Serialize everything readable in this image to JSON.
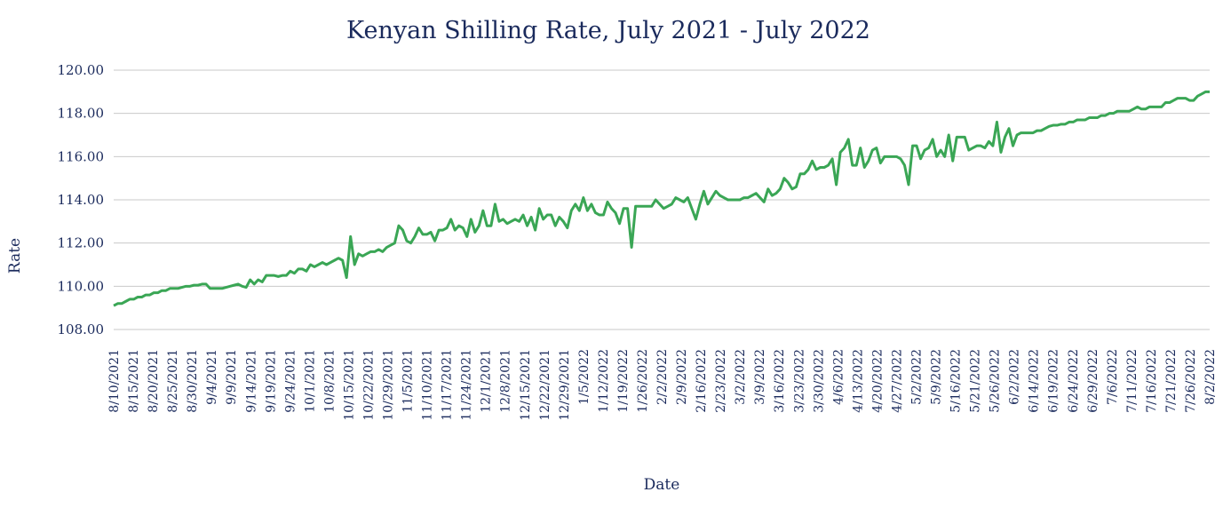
{
  "chart_data": {
    "type": "line",
    "title": "Kenyan Shilling Rate, July 2021 - July 2022",
    "xlabel": "Date",
    "ylabel": "Rate",
    "ylim": [
      108,
      120
    ],
    "yticks": [
      "108.00",
      "110.00",
      "112.00",
      "114.00",
      "116.00",
      "118.00",
      "120.00"
    ],
    "grid": "horizontal",
    "legend": "none",
    "colors": {
      "line": "#3aa655",
      "text": "#1a2a5c",
      "grid": "#c9c9c9"
    },
    "x_tick_labels": [
      "8/10/2021",
      "8/15/2021",
      "8/20/2021",
      "8/25/2021",
      "8/30/2021",
      "9/4/2021",
      "9/9/2021",
      "9/14/2021",
      "9/19/2021",
      "9/24/2021",
      "10/1/2021",
      "10/8/2021",
      "10/15/2021",
      "10/22/2021",
      "10/29/2021",
      "11/5/2021",
      "11/10/2021",
      "11/17/2021",
      "11/24/2021",
      "12/1/2021",
      "12/8/2021",
      "12/15/2021",
      "12/22/2021",
      "12/29/2021",
      "1/5/2022",
      "1/12/2022",
      "1/19/2022",
      "1/26/2022",
      "2/2/2022",
      "2/9/2022",
      "2/16/2022",
      "2/23/2022",
      "3/2/2022",
      "3/9/2022",
      "3/16/2022",
      "3/23/2022",
      "3/30/2022",
      "4/6/2022",
      "4/13/2022",
      "4/20/2022",
      "4/27/2022",
      "5/2/2022",
      "5/9/2022",
      "5/16/2022",
      "5/21/2022",
      "5/26/2022",
      "6/2/2022",
      "6/14/2022",
      "6/19/2022",
      "6/24/2022",
      "6/29/2022",
      "7/6/2022",
      "7/11/2022",
      "7/16/2022",
      "7/21/2022",
      "7/26/2022",
      "8/2/2022"
    ],
    "series": [
      {
        "values": [
          109.1,
          109.2,
          109.2,
          109.3,
          109.4,
          109.4,
          109.5,
          109.5,
          109.6,
          109.6,
          109.7,
          109.7,
          109.8,
          109.8,
          109.9,
          109.9,
          109.9,
          109.95,
          110.0,
          110.0,
          110.05,
          110.05,
          110.1,
          110.1,
          109.9,
          109.9,
          109.9,
          109.9,
          109.95,
          110.0,
          110.05,
          110.1,
          110.0,
          109.95,
          110.3,
          110.1,
          110.3,
          110.2,
          110.5,
          110.5,
          110.5,
          110.45,
          110.5,
          110.5,
          110.7,
          110.6,
          110.8,
          110.8,
          110.7,
          111.0,
          110.9,
          111.0,
          111.1,
          111.0,
          111.1,
          111.2,
          111.3,
          111.2,
          110.4,
          112.3,
          111.0,
          111.5,
          111.4,
          111.5,
          111.6,
          111.6,
          111.7,
          111.6,
          111.8,
          111.9,
          112.0,
          112.8,
          112.6,
          112.1,
          112.0,
          112.3,
          112.7,
          112.4,
          112.4,
          112.5,
          112.1,
          112.6,
          112.6,
          112.7,
          113.1,
          112.6,
          112.8,
          112.7,
          112.3,
          113.1,
          112.5,
          112.8,
          113.5,
          112.8,
          112.8,
          113.8,
          113.0,
          113.1,
          112.9,
          113.0,
          113.1,
          113.0,
          113.3,
          112.8,
          113.2,
          112.6,
          113.6,
          113.1,
          113.3,
          113.3,
          112.8,
          113.2,
          113.0,
          112.7,
          113.5,
          113.8,
          113.5,
          114.1,
          113.5,
          113.8,
          113.4,
          113.3,
          113.3,
          113.9,
          113.6,
          113.4,
          112.9,
          113.6,
          113.6,
          111.8,
          113.7,
          113.7,
          113.7,
          113.7,
          113.7,
          114.0,
          113.8,
          113.6,
          113.7,
          113.8,
          114.1,
          114.0,
          113.9,
          114.1,
          113.6,
          113.1,
          113.8,
          114.4,
          113.8,
          114.1,
          114.4,
          114.2,
          114.1,
          114.0,
          114.0,
          114.0,
          114.0,
          114.1,
          114.1,
          114.2,
          114.3,
          114.1,
          113.9,
          114.5,
          114.2,
          114.3,
          114.5,
          115.0,
          114.8,
          114.5,
          114.6,
          115.2,
          115.2,
          115.4,
          115.8,
          115.4,
          115.5,
          115.5,
          115.6,
          115.9,
          114.7,
          116.2,
          116.4,
          116.8,
          115.6,
          115.6,
          116.4,
          115.5,
          115.8,
          116.3,
          116.4,
          115.7,
          116.0,
          116.0,
          116.0,
          116.0,
          115.9,
          115.6,
          114.7,
          116.5,
          116.5,
          115.9,
          116.3,
          116.4,
          116.8,
          116.0,
          116.3,
          116.0,
          117.0,
          115.8,
          116.9,
          116.9,
          116.9,
          116.3,
          116.4,
          116.5,
          116.5,
          116.4,
          116.7,
          116.5,
          117.6,
          116.2,
          116.9,
          117.3,
          116.5,
          117.0,
          117.1,
          117.1,
          117.1,
          117.1,
          117.2,
          117.2,
          117.3,
          117.4,
          117.45,
          117.45,
          117.5,
          117.5,
          117.6,
          117.6,
          117.7,
          117.7,
          117.7,
          117.8,
          117.8,
          117.8,
          117.9,
          117.9,
          118.0,
          118.0,
          118.1,
          118.1,
          118.1,
          118.1,
          118.2,
          118.3,
          118.2,
          118.2,
          118.3,
          118.3,
          118.3,
          118.3,
          118.5,
          118.5,
          118.6,
          118.7,
          118.7,
          118.7,
          118.6,
          118.6,
          118.8,
          118.9,
          119.0,
          119.0
        ]
      }
    ]
  }
}
